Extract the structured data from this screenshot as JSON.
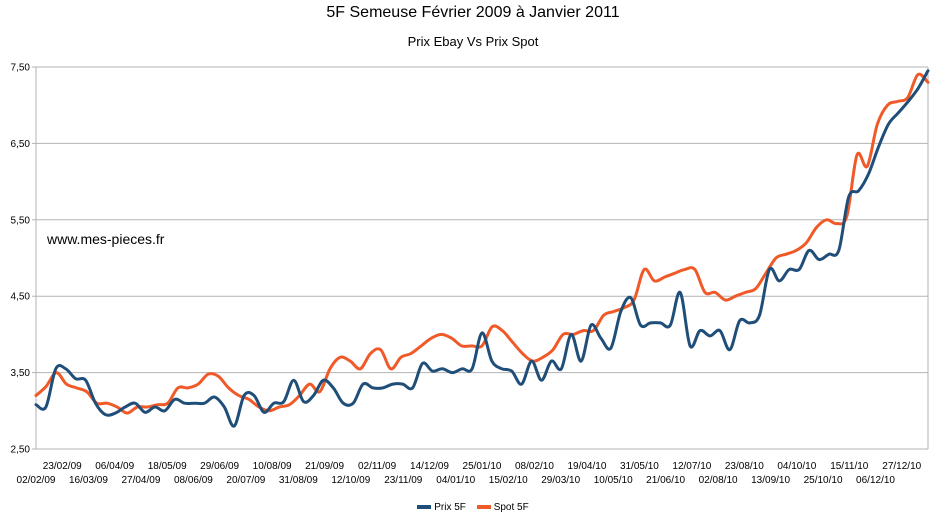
{
  "chart_data": {
    "type": "line",
    "title": "5F Semeuse Février 2009 à Janvier 2011",
    "subtitle": "Prix Ebay Vs Prix Spot",
    "annotation": "www.mes-pieces.fr",
    "xlabel": "",
    "ylabel": "",
    "ylim": [
      2.5,
      7.5
    ],
    "yticks": [
      "2,50",
      "3,50",
      "4,50",
      "5,50",
      "6,50",
      "7,50"
    ],
    "ytick_values": [
      2.5,
      3.5,
      4.5,
      5.5,
      6.5,
      7.5
    ],
    "grid": true,
    "legend_position": "bottom",
    "x_labels_upper": [
      "23/02/09",
      "06/04/09",
      "18/05/09",
      "29/06/09",
      "10/08/09",
      "21/09/09",
      "02/11/09",
      "14/12/09",
      "25/01/10",
      "08/02/10",
      "19/04/10",
      "31/05/10",
      "12/07/10",
      "23/08/10",
      "04/10/10",
      "15/11/10",
      "27/12/10"
    ],
    "x_labels_lower": [
      "02/02/09",
      "16/03/09",
      "27/04/09",
      "08/06/09",
      "20/07/09",
      "31/08/09",
      "12/10/09",
      "23/11/09",
      "04/01/10",
      "15/02/10",
      "29/03/10",
      "10/05/10",
      "21/06/10",
      "02/08/10",
      "13/09/10",
      "25/10/10",
      "06/12/10"
    ],
    "series": [
      {
        "name": "Prix 5F",
        "color": "#1f4e79",
        "values": [
          3.08,
          3.05,
          3.55,
          3.55,
          3.42,
          3.4,
          3.1,
          2.95,
          2.97,
          3.05,
          3.1,
          2.98,
          3.05,
          3.0,
          3.15,
          3.1,
          3.1,
          3.1,
          3.18,
          3.05,
          2.8,
          3.2,
          3.2,
          2.98,
          3.1,
          3.12,
          3.4,
          3.12,
          3.2,
          3.4,
          3.3,
          3.1,
          3.1,
          3.35,
          3.3,
          3.3,
          3.35,
          3.35,
          3.3,
          3.62,
          3.52,
          3.55,
          3.5,
          3.55,
          3.55,
          4.02,
          3.65,
          3.55,
          3.52,
          3.35,
          3.65,
          3.4,
          3.65,
          3.55,
          4.0,
          3.65,
          4.12,
          3.95,
          3.82,
          4.3,
          4.48,
          4.12,
          4.15,
          4.15,
          4.12,
          4.55,
          3.85,
          4.05,
          3.98,
          4.05,
          3.8,
          4.18,
          4.15,
          4.25,
          4.85,
          4.7,
          4.85,
          4.85,
          5.1,
          4.98,
          5.05,
          5.1,
          5.8,
          5.88,
          6.1,
          6.45,
          6.75,
          6.9,
          7.05,
          7.22,
          7.45
        ]
      },
      {
        "name": "Spot 5F",
        "color": "#f05a28",
        "values": [
          3.2,
          3.32,
          3.5,
          3.35,
          3.3,
          3.25,
          3.1,
          3.1,
          3.05,
          2.97,
          3.05,
          3.05,
          3.08,
          3.1,
          3.3,
          3.3,
          3.35,
          3.48,
          3.45,
          3.3,
          3.2,
          3.15,
          3.05,
          3.0,
          3.05,
          3.08,
          3.2,
          3.35,
          3.25,
          3.55,
          3.7,
          3.65,
          3.55,
          3.75,
          3.8,
          3.55,
          3.7,
          3.75,
          3.85,
          3.95,
          4.0,
          3.95,
          3.85,
          3.85,
          3.85,
          4.1,
          4.05,
          3.9,
          3.75,
          3.65,
          3.7,
          3.8,
          4.0,
          4.0,
          4.05,
          4.05,
          4.25,
          4.3,
          4.35,
          4.45,
          4.85,
          4.7,
          4.75,
          4.8,
          4.85,
          4.85,
          4.55,
          4.55,
          4.45,
          4.5,
          4.55,
          4.6,
          4.8,
          5.0,
          5.05,
          5.1,
          5.2,
          5.4,
          5.5,
          5.45,
          5.55,
          6.35,
          6.2,
          6.75,
          7.0,
          7.05,
          7.1,
          7.4,
          7.3
        ]
      }
    ]
  }
}
